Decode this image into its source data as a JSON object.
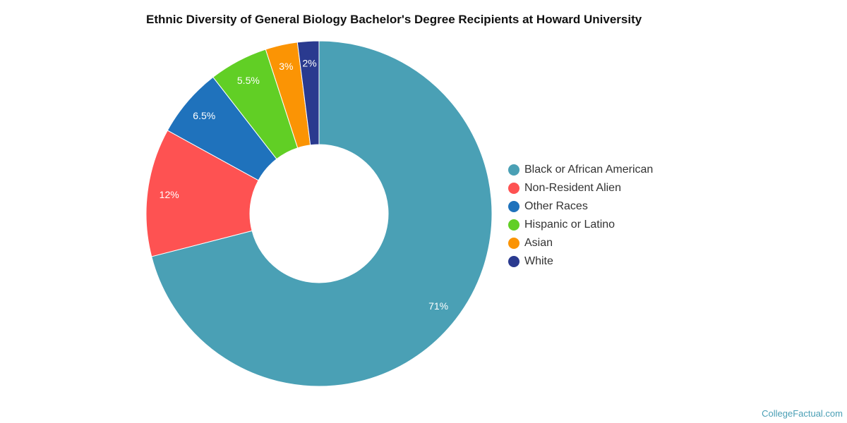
{
  "chart_data": {
    "type": "pie",
    "donut": true,
    "title": "Ethnic Diversity of General Biology Bachelor's Degree Recipients at Howard University",
    "categories": [
      "Black or African American",
      "Non-Resident Alien",
      "Other Races",
      "Hispanic or Latino",
      "Asian",
      "White"
    ],
    "values": [
      71,
      12,
      6.5,
      5.5,
      3,
      2
    ],
    "labels": [
      "71%",
      "12%",
      "6.5%",
      "5.5%",
      "3%",
      "2%"
    ],
    "colors": [
      "#4aa0b5",
      "#fe5252",
      "#1f72bc",
      "#61cf25",
      "#fb9404",
      "#2a3a8f"
    ],
    "legend_position": "right"
  },
  "credit": "CollegeFactual.com"
}
